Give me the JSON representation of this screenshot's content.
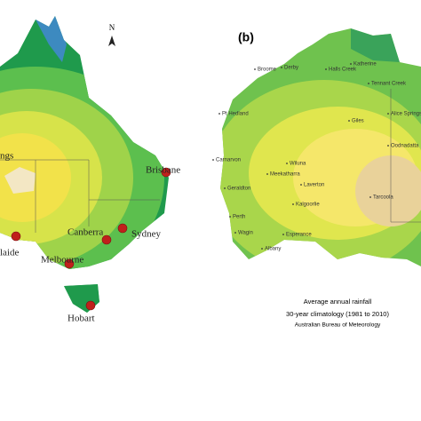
{
  "left_map": {
    "north": "N",
    "cities": [
      "ngs",
      "Brisbane",
      "Canberra",
      "Sydney",
      "laide",
      "Melbourne",
      "Hobart"
    ]
  },
  "right_map": {
    "panel": "(b)",
    "title": "Average annual rainfall",
    "subtitle": "30-year climatology (1981 to 2010)",
    "credit": "Australian Bureau of Meteorology",
    "places": [
      "Katherine",
      "Broome",
      "Derby",
      "Halls Creek",
      "Tennant Creek",
      "Pt Hedland",
      "Giles",
      "Alice Springs",
      "Carnarvon",
      "Wiluna",
      "Meekatharra",
      "Oodnadatta",
      "Geraldton",
      "Laverton",
      "Kalgoorlie",
      "Tarcoola",
      "Perth",
      "Wagin",
      "Esperance",
      "Albany"
    ]
  }
}
